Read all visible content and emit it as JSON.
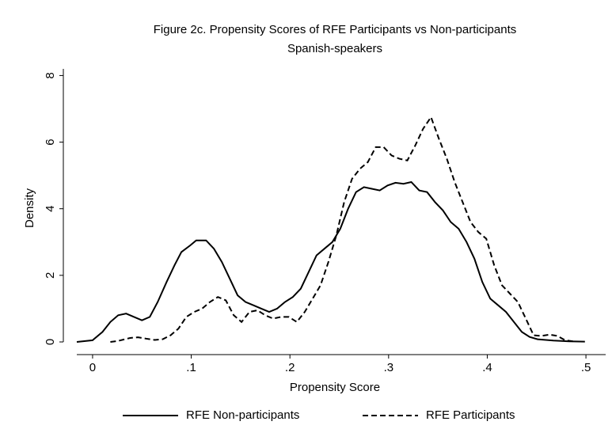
{
  "chart_data": {
    "type": "line",
    "title": "Figure 2c. Propensity Scores of RFE Participants vs Non-participants",
    "subtitle": "Spanish-speakers",
    "x_label": "Propensity Score",
    "y_label": "Density",
    "xlim": [
      -0.016,
      0.52
    ],
    "ylim": [
      0,
      8.2
    ],
    "xticks": [
      0,
      {
        "value": 0.1,
        "label": ".1"
      },
      {
        "value": 0.2,
        "label": ".2"
      },
      {
        "value": 0.3,
        "label": ".3"
      },
      {
        "value": 0.4,
        "label": ".4"
      },
      {
        "value": 0.5,
        "label": ".5"
      }
    ],
    "yticks": [
      0,
      2,
      4,
      6,
      8
    ],
    "legend": "bottom",
    "series": [
      {
        "name": "RFE Non-participants",
        "color": "#000000",
        "dash": "solid",
        "x": [
          -0.016,
          0,
          0.01,
          0.018,
          0.026,
          0.034,
          0.042,
          0.05,
          0.058,
          0.066,
          0.075,
          0.083,
          0.09,
          0.099,
          0.105,
          0.115,
          0.123,
          0.131,
          0.139,
          0.147,
          0.155,
          0.163,
          0.171,
          0.179,
          0.187,
          0.195,
          0.203,
          0.211,
          0.219,
          0.227,
          0.235,
          0.243,
          0.251,
          0.259,
          0.267,
          0.275,
          0.283,
          0.291,
          0.299,
          0.307,
          0.315,
          0.323,
          0.331,
          0.339,
          0.347,
          0.355,
          0.363,
          0.371,
          0.379,
          0.387,
          0.395,
          0.403,
          0.411,
          0.419,
          0.427,
          0.435,
          0.443,
          0.451,
          0.467,
          0.483,
          0.499
        ],
        "values": [
          0,
          0.05,
          0.3,
          0.6,
          0.8,
          0.85,
          0.75,
          0.65,
          0.75,
          1.2,
          1.8,
          2.3,
          2.7,
          2.9,
          3.05,
          3.05,
          2.8,
          2.4,
          1.9,
          1.4,
          1.2,
          1.1,
          1.0,
          0.9,
          1.0,
          1.2,
          1.35,
          1.6,
          2.1,
          2.6,
          2.8,
          3.0,
          3.4,
          4.0,
          4.5,
          4.65,
          4.6,
          4.55,
          4.7,
          4.78,
          4.75,
          4.8,
          4.55,
          4.5,
          4.2,
          3.95,
          3.6,
          3.4,
          3.0,
          2.5,
          1.8,
          1.3,
          1.1,
          0.9,
          0.6,
          0.3,
          0.15,
          0.08,
          0.04,
          0.02,
          0.01
        ]
      },
      {
        "name": "RFE Participants",
        "color": "#000000",
        "dash": "dashed",
        "x": [
          0.018,
          0.026,
          0.038,
          0.046,
          0.054,
          0.063,
          0.071,
          0.079,
          0.087,
          0.095,
          0.103,
          0.111,
          0.119,
          0.127,
          0.135,
          0.143,
          0.151,
          0.159,
          0.167,
          0.175,
          0.183,
          0.191,
          0.199,
          0.207,
          0.215,
          0.223,
          0.231,
          0.239,
          0.247,
          0.255,
          0.263,
          0.271,
          0.279,
          0.287,
          0.295,
          0.303,
          0.311,
          0.319,
          0.327,
          0.335,
          0.343,
          0.351,
          0.359,
          0.367,
          0.375,
          0.383,
          0.391,
          0.399,
          0.407,
          0.415,
          0.423,
          0.431,
          0.439,
          0.447,
          0.455,
          0.463,
          0.471,
          0.479,
          0.487
        ],
        "values": [
          0,
          0.03,
          0.12,
          0.14,
          0.1,
          0.06,
          0.08,
          0.2,
          0.4,
          0.75,
          0.9,
          1.0,
          1.2,
          1.35,
          1.25,
          0.8,
          0.6,
          0.9,
          0.95,
          0.8,
          0.7,
          0.75,
          0.75,
          0.6,
          0.9,
          1.3,
          1.7,
          2.4,
          3.2,
          4.2,
          4.9,
          5.2,
          5.4,
          5.85,
          5.85,
          5.6,
          5.5,
          5.45,
          5.9,
          6.4,
          6.75,
          6.1,
          5.5,
          4.8,
          4.2,
          3.6,
          3.3,
          3.1,
          2.3,
          1.7,
          1.45,
          1.2,
          0.7,
          0.2,
          0.18,
          0.22,
          0.18,
          0.05,
          0.02
        ]
      }
    ]
  }
}
